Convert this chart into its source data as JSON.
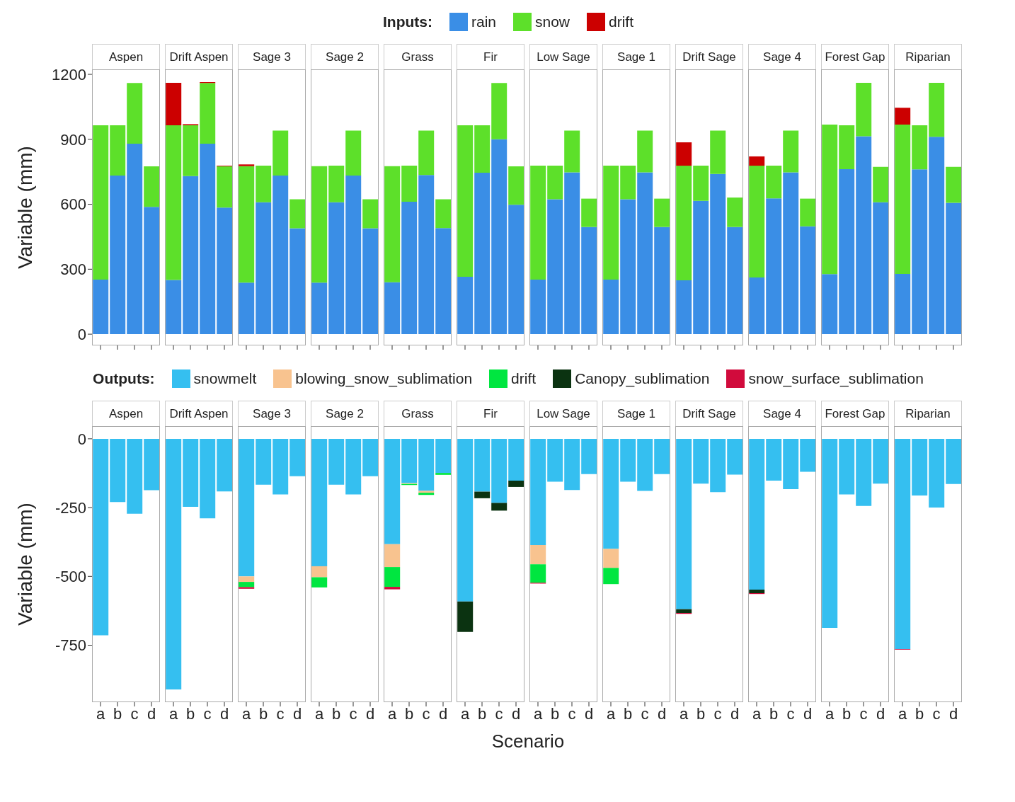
{
  "chart_data": [
    {
      "type": "bar",
      "stacked": true,
      "categories": [
        null,
        null,
        null,
        null,
        null,
        null,
        null,
        null,
        null,
        null,
        null,
        null,
        null,
        null,
        null,
        null,
        null,
        null,
        null,
        null,
        null,
        null,
        null,
        null,
        null,
        null,
        null,
        null,
        null,
        null,
        null,
        null,
        null,
        null,
        null,
        null,
        null,
        null,
        null,
        null,
        null,
        null,
        null,
        null,
        null,
        null,
        null,
        null
      ],
      "ylim": [
        -52,
        1223
      ],
      "yticks": [
        0,
        300,
        600,
        900,
        1200
      ],
      "ylabel": "Variable (mm)",
      "legend": "top",
      "legend_title": "Inputs:",
      "tick_labels": "y",
      "annotations": [
        "Aspen",
        "Drift Aspen",
        "Sage 3",
        "Sage 2",
        "Grass",
        "Fir",
        "Low Sage",
        "Sage 1",
        "Drift Sage",
        "Sage 4",
        "Forest Gap",
        "Riparian"
      ],
      "series": [
        {
          "name": "rain",
          "color": "#3a8ee6",
          "values": [
            252,
            733,
            880,
            588,
            250,
            730,
            880,
            585,
            238,
            609,
            733,
            489,
            238,
            609,
            733,
            489,
            240,
            612,
            735,
            490,
            265,
            746,
            900,
            598,
            252,
            623,
            747,
            495,
            252,
            623,
            747,
            495,
            249,
            616,
            740,
            495,
            262,
            627,
            747,
            498,
            277,
            762,
            914,
            609,
            278,
            761,
            912,
            607
          ]
        },
        {
          "name": "snow",
          "color": "#5de02a",
          "values": [
            713,
            232,
            280,
            187,
            715,
            235,
            280,
            190,
            538,
            169,
            207,
            134,
            538,
            169,
            207,
            134,
            536,
            166,
            205,
            133,
            700,
            219,
            260,
            177,
            526,
            155,
            193,
            131,
            526,
            155,
            193,
            131,
            529,
            162,
            200,
            136,
            516,
            151,
            193,
            128,
            691,
            203,
            247,
            164,
            690,
            204,
            249,
            166
          ]
        },
        {
          "name": "drift",
          "color": "#cc0000",
          "values": [
            null,
            null,
            null,
            null,
            196,
            5,
            4,
            3,
            8,
            null,
            null,
            null,
            null,
            null,
            null,
            null,
            null,
            null,
            null,
            null,
            null,
            null,
            null,
            null,
            null,
            null,
            null,
            null,
            null,
            null,
            null,
            null,
            108,
            null,
            null,
            null,
            43,
            null,
            null,
            null,
            null,
            null,
            null,
            null,
            78,
            null,
            null,
            null
          ]
        }
      ]
    },
    {
      "type": "bar",
      "stacked": true,
      "categories": [
        "a",
        "b",
        "c",
        "d",
        "a",
        "b",
        "c",
        "d",
        "a",
        "b",
        "c",
        "d",
        "a",
        "b",
        "c",
        "d",
        "a",
        "b",
        "c",
        "d",
        "a",
        "b",
        "c",
        "d",
        "a",
        "b",
        "c",
        "d",
        "a",
        "b",
        "c",
        "d",
        "a",
        "b",
        "c",
        "d",
        "a",
        "b",
        "c",
        "d",
        "a",
        "b",
        "c",
        "d",
        "a",
        "b",
        "c",
        "d"
      ],
      "ylim": [
        -957,
        46
      ],
      "yticks": [
        0,
        -250,
        -500,
        -750
      ],
      "ylabel": "Variable (mm)",
      "xlabel": "Scenario",
      "legend": "top",
      "legend_title": "Outputs:",
      "annotations": [
        "Aspen",
        "Drift Aspen",
        "Sage 3",
        "Sage 2",
        "Grass",
        "Fir",
        "Low Sage",
        "Sage 1",
        "Drift Sage",
        "Sage 4",
        "Forest Gap",
        "Riparian"
      ],
      "series": [
        {
          "name": "snowmelt",
          "color": "#35bff0",
          "values": [
            -714,
            -230,
            -272,
            -187,
            -911,
            -247,
            -289,
            -191,
            -500,
            -167,
            -202,
            -136,
            -463,
            -167,
            -202,
            -136,
            -383,
            -161,
            -189,
            -124,
            -591,
            -192,
            -233,
            -152,
            -386,
            -156,
            -186,
            -128,
            -400,
            -156,
            -189,
            -128,
            -619,
            -163,
            -194,
            -130,
            -548,
            -152,
            -183,
            -120,
            -687,
            -202,
            -244,
            -163,
            -764,
            -206,
            -250,
            -164
          ]
        },
        {
          "name": "blowing_snow_sublimation",
          "color": "#f8c38f",
          "values": [
            null,
            null,
            null,
            null,
            null,
            null,
            null,
            null,
            -20,
            null,
            null,
            null,
            -40,
            null,
            null,
            null,
            -83,
            -3,
            -7,
            null,
            null,
            null,
            null,
            null,
            -70,
            null,
            null,
            null,
            -69,
            null,
            null,
            null,
            null,
            null,
            null,
            null,
            null,
            null,
            null,
            null,
            null,
            null,
            null,
            null,
            null,
            null,
            null,
            null
          ]
        },
        {
          "name": "drift",
          "color": "#00e640",
          "values": [
            null,
            null,
            null,
            null,
            null,
            null,
            null,
            null,
            -19,
            null,
            null,
            null,
            -37,
            null,
            null,
            null,
            -72,
            -4,
            -8,
            -7,
            null,
            null,
            null,
            null,
            -67,
            null,
            null,
            null,
            -59,
            null,
            null,
            null,
            null,
            null,
            null,
            null,
            null,
            null,
            null,
            null,
            null,
            null,
            null,
            null,
            null,
            null,
            null,
            null
          ]
        },
        {
          "name": "Canopy_sublimation",
          "color": "#0b3311",
          "values": [
            null,
            null,
            null,
            null,
            null,
            null,
            null,
            null,
            null,
            null,
            null,
            null,
            null,
            null,
            null,
            null,
            null,
            null,
            null,
            null,
            -111,
            -24,
            -28,
            -23,
            null,
            null,
            null,
            null,
            null,
            null,
            null,
            null,
            -14,
            null,
            null,
            null,
            -13,
            null,
            null,
            null,
            null,
            null,
            null,
            null,
            null,
            null,
            null,
            null
          ]
        },
        {
          "name": "snow_surface_sublimation",
          "color": "#d10b3c",
          "values": [
            null,
            null,
            null,
            null,
            null,
            null,
            null,
            null,
            -6,
            null,
            null,
            null,
            null,
            null,
            null,
            null,
            -9,
            null,
            null,
            null,
            null,
            null,
            null,
            null,
            -3,
            null,
            null,
            null,
            null,
            null,
            null,
            null,
            -3,
            null,
            null,
            null,
            -3,
            null,
            null,
            null,
            null,
            null,
            null,
            null,
            -2,
            null,
            null,
            null
          ]
        }
      ]
    }
  ]
}
